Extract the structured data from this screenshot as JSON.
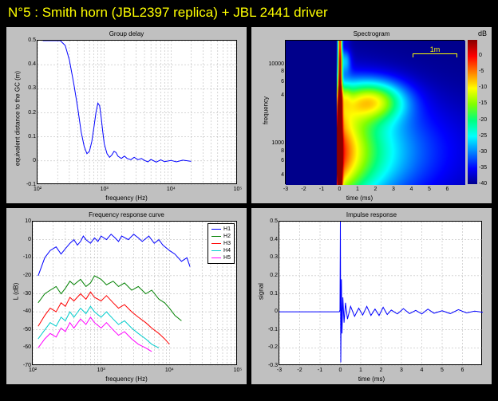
{
  "title": "N°5 : Smith horn (JBL2397 replica) + JBL 2441 driver",
  "background": "#000000",
  "panel_bg": "#c0c0c0",
  "plot_bg": "#ffffff",
  "panels": {
    "group_delay": {
      "title": "Group delay",
      "xlabel": "frequency  (Hz)",
      "ylabel": "equivalent distance to the GC  (m)",
      "xscale": "log",
      "xlim": [
        100,
        100000
      ],
      "xticks": [
        100,
        1000,
        10000,
        100000
      ],
      "xtick_labels": [
        "10²",
        "10³",
        "10⁴",
        "10⁵"
      ],
      "ylim": [
        -0.1,
        0.5
      ],
      "yticks": [
        -0.1,
        0,
        0.1,
        0.2,
        0.3,
        0.4,
        0.5
      ],
      "line_color": "#0000ff",
      "data": [
        [
          120,
          0.5
        ],
        [
          150,
          0.5
        ],
        [
          180,
          0.5
        ],
        [
          220,
          0.5
        ],
        [
          260,
          0.48
        ],
        [
          300,
          0.42
        ],
        [
          350,
          0.32
        ],
        [
          400,
          0.22
        ],
        [
          450,
          0.12
        ],
        [
          500,
          0.06
        ],
        [
          550,
          0.03
        ],
        [
          600,
          0.04
        ],
        [
          650,
          0.08
        ],
        [
          700,
          0.14
        ],
        [
          750,
          0.2
        ],
        [
          800,
          0.24
        ],
        [
          850,
          0.23
        ],
        [
          900,
          0.18
        ],
        [
          950,
          0.12
        ],
        [
          1000,
          0.07
        ],
        [
          1100,
          0.03
        ],
        [
          1200,
          0.015
        ],
        [
          1300,
          0.025
        ],
        [
          1400,
          0.04
        ],
        [
          1500,
          0.035
        ],
        [
          1600,
          0.02
        ],
        [
          1800,
          0.01
        ],
        [
          2000,
          0.02
        ],
        [
          2200,
          0.01
        ],
        [
          2500,
          0.005
        ],
        [
          2800,
          0.015
        ],
        [
          3200,
          0.005
        ],
        [
          3600,
          0.01
        ],
        [
          4000,
          0.002
        ],
        [
          4500,
          -0.004
        ],
        [
          5000,
          0.006
        ],
        [
          6000,
          -0.005
        ],
        [
          7000,
          0.004
        ],
        [
          8000,
          -0.003
        ],
        [
          10000,
          0.002
        ],
        [
          12000,
          -0.004
        ],
        [
          15000,
          0.003
        ],
        [
          20000,
          -0.002
        ]
      ]
    },
    "spectrogram": {
      "title": "Spectrogram",
      "xlabel": "time (ms)",
      "ylabel": "frequency",
      "xlim": [
        -3,
        7
      ],
      "xticks": [
        -3,
        -2,
        -1,
        0,
        1,
        2,
        3,
        4,
        5,
        6
      ],
      "yscale": "log",
      "ylim": [
        300,
        20000
      ],
      "yticks_major": [
        1000,
        10000
      ],
      "ytick_labels_major": [
        "1000",
        "10000"
      ],
      "yticks_minor": [
        400,
        600,
        800,
        2000,
        4000,
        6000,
        8000
      ],
      "ytick_labels_minor": [
        "4",
        "6",
        "8",
        "",
        "4",
        "6",
        "8"
      ],
      "colorbar_label": "dB",
      "colorbar_range": [
        -40,
        5
      ],
      "colorbar_ticks": [
        0,
        -5,
        -10,
        -15,
        -20,
        -25,
        -30,
        -35,
        -40
      ],
      "colormap": [
        "#00008b",
        "#0000ff",
        "#0080ff",
        "#00ffff",
        "#00ff80",
        "#80ff00",
        "#ffff00",
        "#ff8000",
        "#ff0000",
        "#8b0000"
      ],
      "scale_bar": "1m"
    },
    "freq_response": {
      "title": "Frequency response curve",
      "xlabel": "frequency  (Hz)",
      "ylabel": "L  (dB)",
      "xscale": "log",
      "xlim": [
        100,
        100000
      ],
      "xticks": [
        100,
        1000,
        10000,
        100000
      ],
      "xtick_labels": [
        "10²",
        "10³",
        "10⁴",
        "10⁵"
      ],
      "ylim": [
        -70,
        10
      ],
      "yticks": [
        -70,
        -60,
        -50,
        -40,
        -30,
        -20,
        -10,
        0,
        10
      ],
      "series": [
        {
          "name": "H1",
          "color": "#0000ff",
          "data": [
            [
              120,
              -20
            ],
            [
              150,
              -10
            ],
            [
              180,
              -6
            ],
            [
              220,
              -4
            ],
            [
              260,
              -8
            ],
            [
              300,
              -5
            ],
            [
              350,
              -2
            ],
            [
              400,
              0
            ],
            [
              450,
              -3
            ],
            [
              500,
              -1
            ],
            [
              550,
              2
            ],
            [
              600,
              0
            ],
            [
              700,
              -2
            ],
            [
              800,
              1
            ],
            [
              900,
              -1
            ],
            [
              1000,
              2
            ],
            [
              1200,
              0
            ],
            [
              1400,
              3
            ],
            [
              1600,
              1
            ],
            [
              1800,
              -1
            ],
            [
              2000,
              2
            ],
            [
              2500,
              0
            ],
            [
              3000,
              3
            ],
            [
              3500,
              1
            ],
            [
              4000,
              -1
            ],
            [
              5000,
              2
            ],
            [
              6000,
              -2
            ],
            [
              7000,
              0
            ],
            [
              8000,
              -3
            ],
            [
              10000,
              -6
            ],
            [
              12000,
              -8
            ],
            [
              15000,
              -12
            ],
            [
              18000,
              -10
            ],
            [
              20000,
              -15
            ]
          ]
        },
        {
          "name": "H2",
          "color": "#008000",
          "data": [
            [
              120,
              -35
            ],
            [
              150,
              -30
            ],
            [
              180,
              -28
            ],
            [
              220,
              -26
            ],
            [
              260,
              -30
            ],
            [
              300,
              -27
            ],
            [
              350,
              -23
            ],
            [
              400,
              -25
            ],
            [
              500,
              -22
            ],
            [
              600,
              -26
            ],
            [
              700,
              -24
            ],
            [
              800,
              -20
            ],
            [
              1000,
              -22
            ],
            [
              1200,
              -25
            ],
            [
              1500,
              -23
            ],
            [
              1800,
              -26
            ],
            [
              2200,
              -24
            ],
            [
              2800,
              -28
            ],
            [
              3500,
              -26
            ],
            [
              4500,
              -30
            ],
            [
              5500,
              -28
            ],
            [
              7000,
              -33
            ],
            [
              8500,
              -35
            ],
            [
              10000,
              -38
            ],
            [
              12000,
              -42
            ],
            [
              15000,
              -45
            ]
          ]
        },
        {
          "name": "H3",
          "color": "#ff0000",
          "data": [
            [
              120,
              -48
            ],
            [
              150,
              -42
            ],
            [
              180,
              -38
            ],
            [
              220,
              -40
            ],
            [
              260,
              -35
            ],
            [
              300,
              -37
            ],
            [
              350,
              -32
            ],
            [
              400,
              -34
            ],
            [
              500,
              -30
            ],
            [
              600,
              -33
            ],
            [
              700,
              -29
            ],
            [
              800,
              -32
            ],
            [
              1000,
              -34
            ],
            [
              1200,
              -31
            ],
            [
              1500,
              -35
            ],
            [
              1800,
              -38
            ],
            [
              2200,
              -36
            ],
            [
              2800,
              -40
            ],
            [
              3500,
              -43
            ],
            [
              4500,
              -46
            ],
            [
              5500,
              -49
            ],
            [
              7000,
              -52
            ],
            [
              8500,
              -55
            ],
            [
              10000,
              -58
            ]
          ]
        },
        {
          "name": "H4",
          "color": "#00cccc",
          "data": [
            [
              120,
              -55
            ],
            [
              150,
              -50
            ],
            [
              180,
              -46
            ],
            [
              220,
              -48
            ],
            [
              260,
              -43
            ],
            [
              300,
              -45
            ],
            [
              350,
              -40
            ],
            [
              400,
              -43
            ],
            [
              500,
              -38
            ],
            [
              600,
              -41
            ],
            [
              700,
              -37
            ],
            [
              800,
              -40
            ],
            [
              1000,
              -43
            ],
            [
              1200,
              -40
            ],
            [
              1500,
              -44
            ],
            [
              1800,
              -47
            ],
            [
              2200,
              -45
            ],
            [
              2800,
              -49
            ],
            [
              3500,
              -52
            ],
            [
              4500,
              -55
            ],
            [
              5500,
              -58
            ],
            [
              7000,
              -60
            ]
          ]
        },
        {
          "name": "H5",
          "color": "#ff00ff",
          "data": [
            [
              120,
              -60
            ],
            [
              150,
              -55
            ],
            [
              180,
              -52
            ],
            [
              220,
              -54
            ],
            [
              260,
              -49
            ],
            [
              300,
              -51
            ],
            [
              350,
              -46
            ],
            [
              400,
              -49
            ],
            [
              500,
              -44
            ],
            [
              600,
              -47
            ],
            [
              700,
              -43
            ],
            [
              800,
              -46
            ],
            [
              1000,
              -49
            ],
            [
              1200,
              -46
            ],
            [
              1500,
              -50
            ],
            [
              1800,
              -53
            ],
            [
              2200,
              -51
            ],
            [
              2800,
              -55
            ],
            [
              3500,
              -58
            ],
            [
              4500,
              -60
            ],
            [
              5500,
              -62
            ]
          ]
        }
      ]
    },
    "impulse": {
      "title": "Impulse response",
      "xlabel": "time (ms)",
      "ylabel": "signal",
      "xlim": [
        -3,
        7
      ],
      "xticks": [
        -3,
        -2,
        -1,
        0,
        1,
        2,
        3,
        4,
        5,
        6
      ],
      "ylim": [
        -0.3,
        0.5
      ],
      "yticks": [
        -0.3,
        -0.2,
        -0.1,
        0,
        0.1,
        0.2,
        0.3,
        0.4,
        0.5
      ],
      "line_color": "#0000ff",
      "data": [
        [
          -3,
          0
        ],
        [
          -0.05,
          0
        ],
        [
          -0.02,
          0.01
        ],
        [
          0,
          0.5
        ],
        [
          0.02,
          -0.28
        ],
        [
          0.05,
          0.18
        ],
        [
          0.08,
          -0.12
        ],
        [
          0.12,
          0.08
        ],
        [
          0.18,
          -0.06
        ],
        [
          0.25,
          0.05
        ],
        [
          0.35,
          -0.04
        ],
        [
          0.5,
          0.03
        ],
        [
          0.7,
          -0.025
        ],
        [
          0.9,
          0.02
        ],
        [
          1.1,
          -0.018
        ],
        [
          1.3,
          0.03
        ],
        [
          1.5,
          -0.02
        ],
        [
          1.7,
          0.015
        ],
        [
          1.9,
          -0.02
        ],
        [
          2.1,
          0.025
        ],
        [
          2.3,
          -0.015
        ],
        [
          2.5,
          0.01
        ],
        [
          2.8,
          -0.012
        ],
        [
          3.1,
          0.018
        ],
        [
          3.4,
          -0.01
        ],
        [
          3.7,
          0.008
        ],
        [
          4.0,
          -0.012
        ],
        [
          4.3,
          0.015
        ],
        [
          4.6,
          -0.008
        ],
        [
          5.0,
          0.006
        ],
        [
          5.4,
          -0.01
        ],
        [
          5.8,
          0.012
        ],
        [
          6.2,
          -0.006
        ],
        [
          6.6,
          0.004
        ],
        [
          7.0,
          -0.003
        ]
      ]
    }
  }
}
